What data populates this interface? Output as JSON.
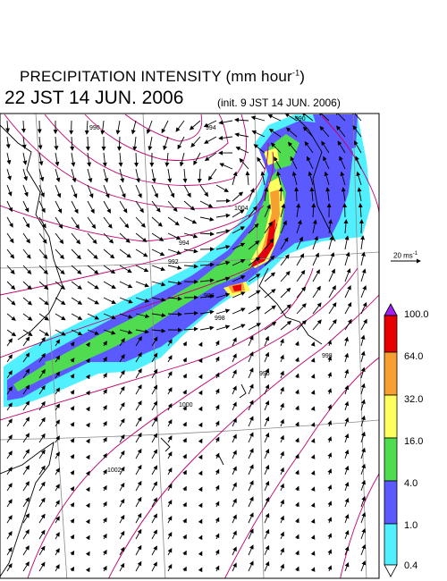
{
  "header": {
    "title_text": "PRECIPITATION INTENSITY (mm hour",
    "title_exp": "-1",
    "title_close": ")",
    "valid_time": "22 JST 14 JUN. 2006",
    "init_time": "(init. 9 JST 14 JUN. 2006)"
  },
  "reference_vector": {
    "speed_text": "20 ms",
    "speed_exp": "-1"
  },
  "colorbar": {
    "labels": [
      "100.0",
      "64.0",
      "32.0",
      "16.0",
      "4.0",
      "1.0",
      "0.4"
    ],
    "colors": {
      "over": "#a020f0",
      "64_100": "#e60000",
      "32_64": "#f5a030",
      "16_32": "#ffff60",
      "4_16": "#50dc50",
      "1_4": "#5a5aff",
      "04_1": "#50f0ff",
      "under": "#ffffff"
    }
  },
  "isobar_labels": [
    "990",
    "992",
    "994",
    "996",
    "998",
    "1000",
    "1002",
    "1004",
    "994",
    "996",
    "998",
    "990"
  ],
  "colors": {
    "isobar": "#c0006e",
    "coast": "#000000",
    "grid": "#8a8a8a",
    "vector": "#000000"
  }
}
